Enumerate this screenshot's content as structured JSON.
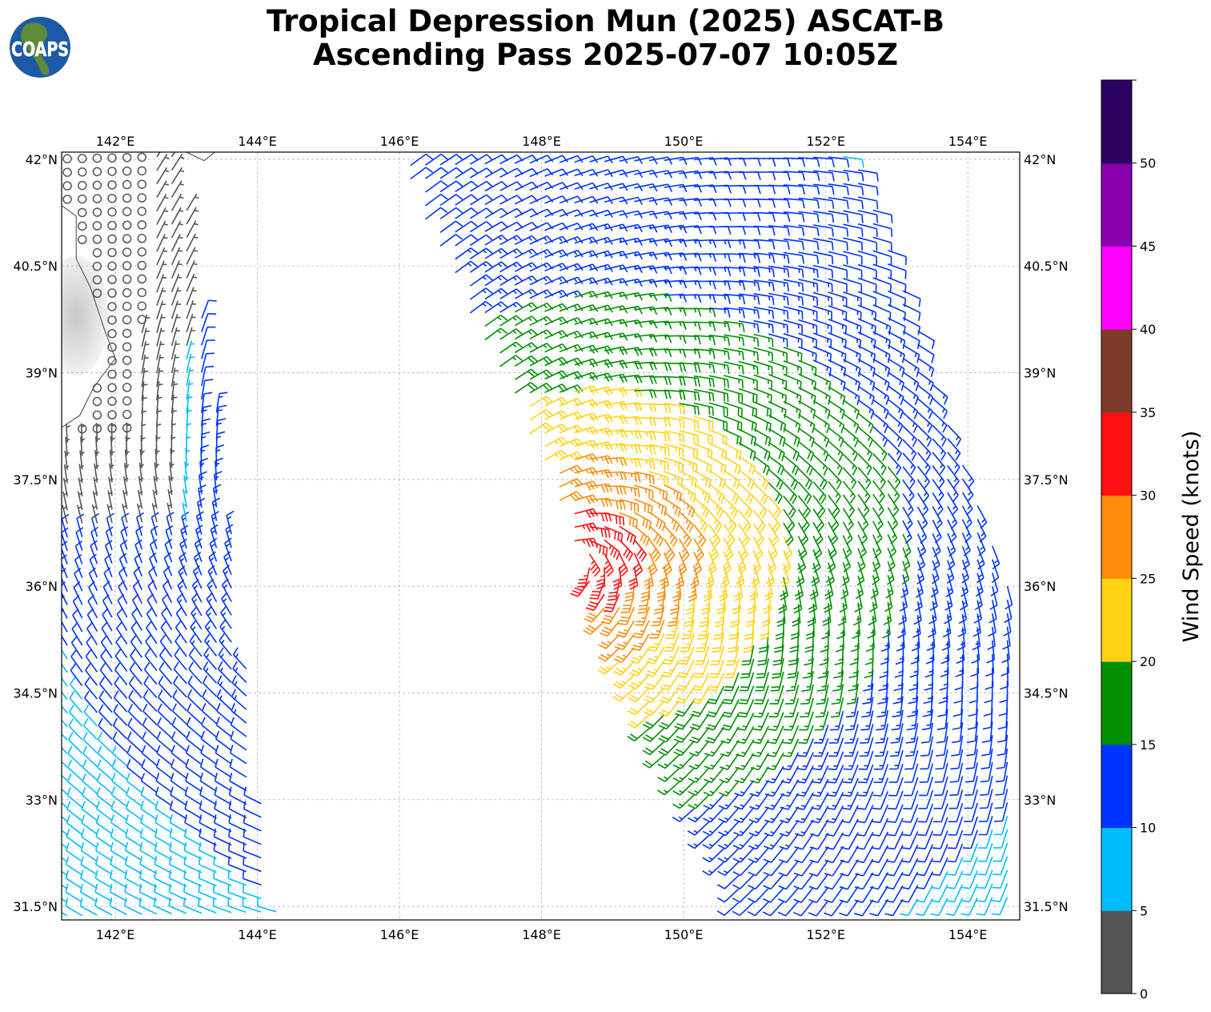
{
  "header": {
    "title_line1": "Tropical Depression Mun (2025) ASCAT-B",
    "title_line2": "Ascending Pass 2025-07-07 10:05Z",
    "logo_text": "COAPS"
  },
  "chart_data": {
    "type": "barbs",
    "title": "Tropical Depression Mun (2025) ASCAT-B Ascending Pass 2025-07-07 10:05Z",
    "xlim": [
      141.245,
      154.73
    ],
    "ylim": [
      31.31,
      42.1
    ],
    "lon_ticks": [
      142,
      144,
      146,
      148,
      150,
      152,
      154
    ],
    "lon_tick_labels": [
      "142°E",
      "144°E",
      "146°E",
      "148°E",
      "150°E",
      "152°E",
      "154°E"
    ],
    "lat_ticks": [
      42,
      40.5,
      39,
      37.5,
      36,
      34.5,
      33,
      31.5
    ],
    "lat_tick_labels": [
      "42°N",
      "40.5°N",
      "39°N",
      "37.5°N",
      "36°N",
      "34.5°N",
      "33°N",
      "31.5°N"
    ],
    "grid": true,
    "units": "knots",
    "storm_center": [
      148.4,
      36.4
    ],
    "max_wind_kt": 33,
    "swaths": [
      {
        "name": "west",
        "polygon": [
          [
            141.245,
            42.1
          ],
          [
            142.9,
            42.1
          ],
          [
            143.5,
            38.0
          ],
          [
            144.0,
            33.5
          ],
          [
            144.3,
            31.31
          ],
          [
            141.245,
            31.31
          ]
        ]
      },
      {
        "name": "east",
        "polygon": [
          [
            145.9,
            42.1
          ],
          [
            152.4,
            42.1
          ],
          [
            154.73,
            35.6
          ],
          [
            154.73,
            31.31
          ],
          [
            150.9,
            31.31
          ],
          [
            150.0,
            33.0
          ],
          [
            149.0,
            35.0
          ],
          [
            148.0,
            37.8
          ],
          [
            146.9,
            40.0
          ]
        ]
      }
    ],
    "colorbar": {
      "label": "Wind Speed (knots)",
      "bounds": [
        0,
        5,
        10,
        15,
        20,
        25,
        30,
        35,
        40,
        45,
        50,
        55
      ],
      "tick_labels": [
        "0",
        "5",
        "10",
        "15",
        "20",
        "25",
        "30",
        "35",
        "40",
        "45",
        "50"
      ],
      "colors": [
        "#555555",
        "#00bfff",
        "#0033ff",
        "#009000",
        "#ffd314",
        "#ff8c0a",
        "#ff1010",
        "#7f3b2a",
        "#ff00ff",
        "#8800b0",
        "#2a0060"
      ]
    }
  }
}
